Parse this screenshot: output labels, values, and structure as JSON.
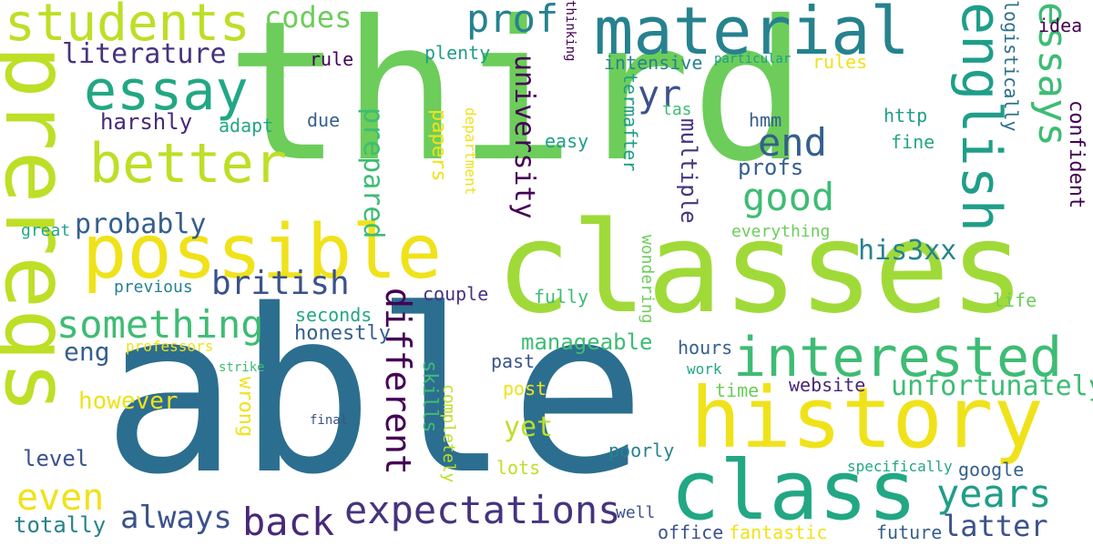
{
  "palette": {
    "c0": "#2c6e8f",
    "c1": "#6ccd5a",
    "c2": "#a0da39",
    "c3": "#f0e21a",
    "c4": "#22a784",
    "c5": "#3b528b",
    "c6": "#482878",
    "c7": "#46337e",
    "c8": "#3ebc74",
    "c9": "#bddf26",
    "c10": "#26828e",
    "c11": "#1f9e89",
    "c12": "#440154",
    "c13": "#355f8d"
  },
  "words": [
    {
      "text": "third",
      "color": "c1"
    },
    {
      "text": "able",
      "color": "c0"
    },
    {
      "text": "classes",
      "color": "c2"
    },
    {
      "text": "prereqs",
      "color": "c9"
    },
    {
      "text": "history",
      "color": "c3"
    },
    {
      "text": "class",
      "color": "c4"
    },
    {
      "text": "possible",
      "color": "c3"
    },
    {
      "text": "material",
      "color": "c10"
    },
    {
      "text": "students",
      "color": "c9"
    },
    {
      "text": "interested",
      "color": "c8"
    },
    {
      "text": "essay",
      "color": "c4"
    },
    {
      "text": "better",
      "color": "c9"
    },
    {
      "text": "english",
      "color": "c11"
    },
    {
      "text": "expectations",
      "color": "c7"
    },
    {
      "text": "something",
      "color": "c8"
    },
    {
      "text": "back",
      "color": "c6"
    },
    {
      "text": "years",
      "color": "c11"
    },
    {
      "text": "essays",
      "color": "c8"
    },
    {
      "text": "different",
      "color": "c12"
    },
    {
      "text": "prof",
      "color": "c10"
    },
    {
      "text": "end",
      "color": "c13"
    },
    {
      "text": "good",
      "color": "c8"
    },
    {
      "text": "british",
      "color": "c5"
    },
    {
      "text": "probably",
      "color": "c13"
    },
    {
      "text": "literature",
      "color": "c7"
    },
    {
      "text": "prepared",
      "color": "c8"
    },
    {
      "text": "university",
      "color": "c12"
    },
    {
      "text": "unfortunately",
      "color": "c8"
    },
    {
      "text": "latter",
      "color": "c5"
    },
    {
      "text": "yr",
      "color": "c5"
    },
    {
      "text": "codes",
      "color": "c1"
    },
    {
      "text": "always",
      "color": "c5"
    },
    {
      "text": "even",
      "color": "c3"
    },
    {
      "text": "totally",
      "color": "c10"
    },
    {
      "text": "his3xx",
      "color": "c10"
    },
    {
      "text": "yet",
      "color": "c9"
    },
    {
      "text": "manageable",
      "color": "c8"
    },
    {
      "text": "however",
      "color": "c3"
    },
    {
      "text": "eng",
      "color": "c13"
    },
    {
      "text": "level",
      "color": "c5"
    },
    {
      "text": "profs",
      "color": "c13"
    },
    {
      "text": "multiple",
      "color": "c7"
    },
    {
      "text": "confident",
      "color": "c12"
    },
    {
      "text": "harshly",
      "color": "c6"
    },
    {
      "text": "papers",
      "color": "c3"
    },
    {
      "text": "skills",
      "color": "c8"
    },
    {
      "text": "wrong",
      "color": "c3"
    },
    {
      "text": "completely",
      "color": "c9"
    },
    {
      "text": "honestly",
      "color": "c13"
    },
    {
      "text": "seconds",
      "color": "c4"
    },
    {
      "text": "plenty",
      "color": "c11"
    },
    {
      "text": "intensive",
      "color": "c10"
    },
    {
      "text": "rules",
      "color": "c3"
    },
    {
      "text": "rule",
      "color": "c12"
    },
    {
      "text": "idea",
      "color": "c12"
    },
    {
      "text": "logistically",
      "color": "c0"
    },
    {
      "text": "hmm",
      "color": "c13"
    },
    {
      "text": "http",
      "color": "c11"
    },
    {
      "text": "fine",
      "color": "c4"
    },
    {
      "text": "due",
      "color": "c13"
    },
    {
      "text": "adapt",
      "color": "c4"
    },
    {
      "text": "tas",
      "color": "c8"
    },
    {
      "text": "easy",
      "color": "c11"
    },
    {
      "text": "termafter",
      "color": "c11"
    },
    {
      "text": "department",
      "color": "c3"
    },
    {
      "text": "great",
      "color": "c4"
    },
    {
      "text": "previous",
      "color": "c10"
    },
    {
      "text": "couple",
      "color": "c7"
    },
    {
      "text": "fully",
      "color": "c8"
    },
    {
      "text": "wondering",
      "color": "c1"
    },
    {
      "text": "everything",
      "color": "c1"
    },
    {
      "text": "life",
      "color": "c1"
    },
    {
      "text": "hours",
      "color": "c13"
    },
    {
      "text": "past",
      "color": "c5"
    },
    {
      "text": "post",
      "color": "c3"
    },
    {
      "text": "work",
      "color": "c4"
    },
    {
      "text": "time",
      "color": "c1"
    },
    {
      "text": "website",
      "color": "c6"
    },
    {
      "text": "professors",
      "color": "c3"
    },
    {
      "text": "strike",
      "color": "c8"
    },
    {
      "text": "final",
      "color": "c5"
    },
    {
      "text": "poorly",
      "color": "c10"
    },
    {
      "text": "lots",
      "color": "c9"
    },
    {
      "text": "specifically",
      "color": "c4"
    },
    {
      "text": "google",
      "color": "c13"
    },
    {
      "text": "well",
      "color": "c5"
    },
    {
      "text": "office",
      "color": "c5"
    },
    {
      "text": "fantastic",
      "color": "c3"
    },
    {
      "text": "future",
      "color": "c13"
    },
    {
      "text": "particular",
      "color": "c11"
    },
    {
      "text": "thinking",
      "color": "c12"
    }
  ]
}
